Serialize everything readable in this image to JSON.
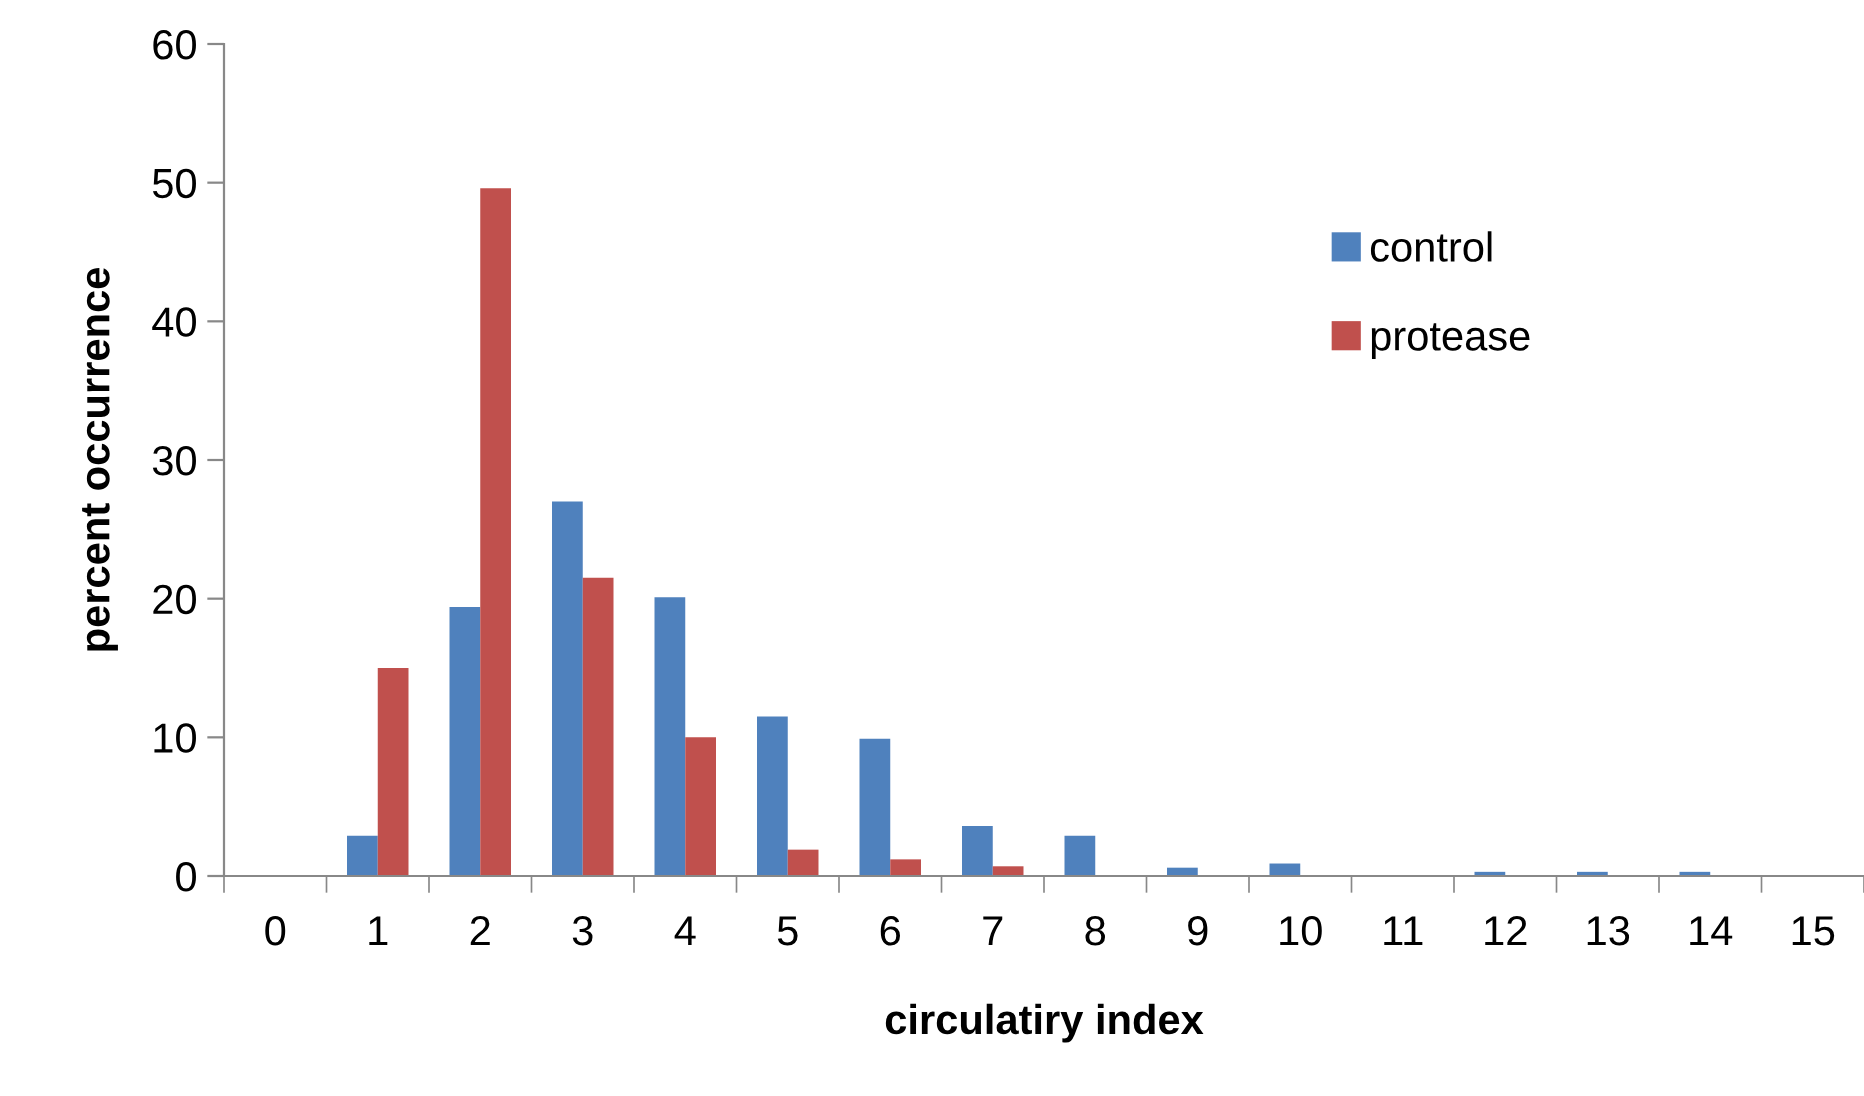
{
  "chart_data": {
    "type": "bar",
    "xlabel": "circulatiry index",
    "ylabel": "percent occurrence",
    "categories": [
      "0",
      "1",
      "2",
      "3",
      "4",
      "5",
      "6",
      "7",
      "8",
      "9",
      "10",
      "11",
      "12",
      "13",
      "14",
      "15"
    ],
    "series": [
      {
        "name": "control",
        "color": "#4f81bd",
        "values": [
          0,
          2.9,
          19.4,
          27,
          20.1,
          11.5,
          9.9,
          3.6,
          2.9,
          0.6,
          0.9,
          0,
          0.3,
          0.3,
          0.3,
          0
        ]
      },
      {
        "name": "protease",
        "color": "#c0504d",
        "values": [
          0,
          15,
          49.6,
          21.5,
          10,
          1.9,
          1.2,
          0.7,
          0,
          0,
          0,
          0,
          0,
          0,
          0,
          0
        ]
      }
    ],
    "ylim": [
      0,
      60
    ],
    "yticks": [
      0,
      10,
      20,
      30,
      40,
      50,
      60
    ],
    "grid": false,
    "legend": "top right"
  }
}
